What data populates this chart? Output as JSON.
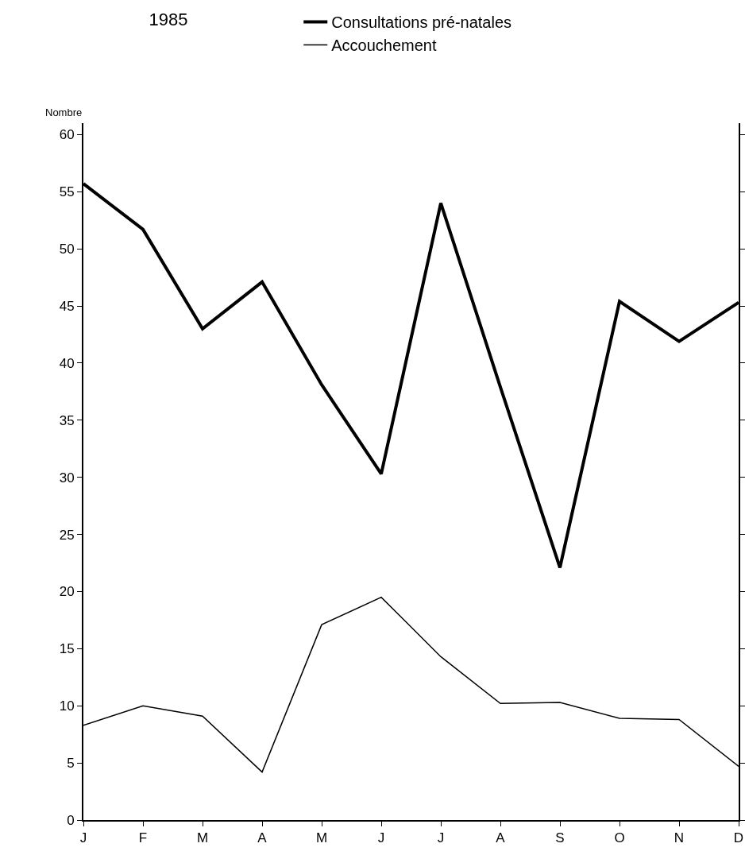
{
  "chart_data": {
    "type": "line",
    "title": "1985",
    "ylabel": "Nombre",
    "categories": [
      "J",
      "F",
      "M",
      "A",
      "M",
      "J",
      "J",
      "A",
      "S",
      "O",
      "N",
      "D"
    ],
    "series": [
      {
        "name": "Consultations pré-natales",
        "color": "#000000",
        "values": [
          55.7,
          51.7,
          43.0,
          47.1,
          38.1,
          30.3,
          54.0,
          37.9,
          22.1,
          45.4,
          41.9,
          45.3
        ]
      },
      {
        "name": "Accouchement",
        "color": "#000000",
        "values": [
          8.3,
          10.0,
          9.1,
          4.2,
          17.1,
          19.5,
          14.3,
          10.2,
          10.3,
          8.9,
          8.8,
          4.7
        ]
      }
    ],
    "ylim": [
      0,
      61
    ],
    "yticks": [
      0,
      5,
      10,
      15,
      20,
      25,
      30,
      35,
      40,
      45,
      50,
      55,
      60
    ],
    "grid": false,
    "legend": "top",
    "marker": "none",
    "line_style": "solid"
  }
}
